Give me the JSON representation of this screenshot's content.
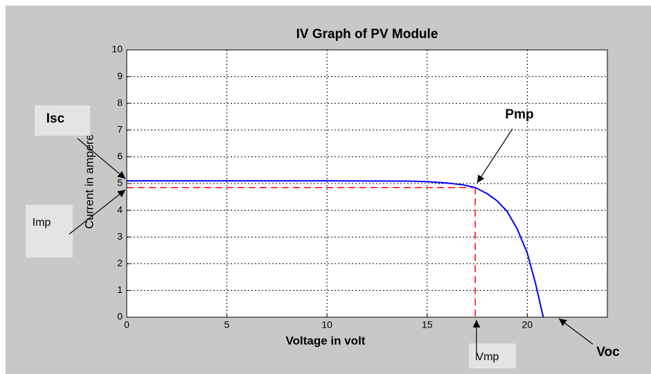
{
  "chart_data": {
    "type": "line",
    "title": "IV Graph of PV Module",
    "x_label": "Voltage in volt",
    "y_label": "Current in ampere",
    "x": [
      0,
      5,
      10,
      14,
      15,
      16,
      16.8,
      17.4,
      18,
      18.5,
      19,
      19.5,
      20,
      20.4,
      20.8
    ],
    "series": [
      {
        "color": "#0000ff",
        "values": [
          5.1,
          5.1,
          5.1,
          5.09,
          5.07,
          5.02,
          4.95,
          4.85,
          4.62,
          4.35,
          3.95,
          3.3,
          2.4,
          1.3,
          0
        ]
      }
    ],
    "reference_lines": {
      "imp": 4.85,
      "vmp": 17.4,
      "color": "#ff0000"
    },
    "xlim": [
      0,
      24
    ],
    "xticks": [
      0,
      5,
      10,
      15,
      20
    ],
    "ylim": [
      0,
      10
    ],
    "yticks": [
      0,
      1,
      2,
      3,
      4,
      5,
      6,
      7,
      8,
      9,
      10
    ],
    "grid": true,
    "annotations": [
      "Isc",
      "Imp",
      "Pmp",
      "Vmp",
      "Voc"
    ]
  }
}
